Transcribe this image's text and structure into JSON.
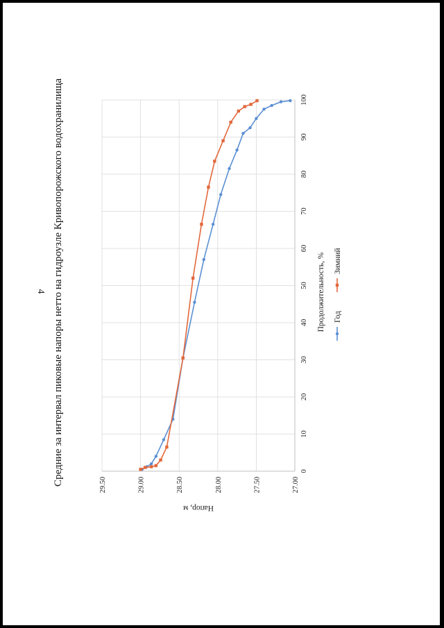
{
  "page": {
    "number": "4"
  },
  "colors": {
    "god": "#5b8fd3",
    "zimniy": "#e2683c",
    "grid": "#d9d9d9",
    "axis": "#bfbfbf"
  },
  "chart_data": {
    "type": "line",
    "title": "Средние за интервал пиковые напоры нетто на гидроузле Кривопорожского водохранилища",
    "xlabel": "Продолжительность, %",
    "ylabel": "Напор, м",
    "xlim": [
      0,
      100
    ],
    "ylim": [
      27.0,
      29.5
    ],
    "x_ticks": [
      "0",
      "10",
      "20",
      "30",
      "40",
      "50",
      "60",
      "70",
      "80",
      "90",
      "100"
    ],
    "y_ticks": [
      "29.50",
      "29.00",
      "28.50",
      "28.00",
      "27.50",
      "27.00"
    ],
    "grid": true,
    "legend_position": "bottom",
    "series": [
      {
        "name": "Год",
        "color": "#5b8fd3",
        "points": [
          [
            0.5,
            28.98
          ],
          [
            1.2,
            28.92
          ],
          [
            2.0,
            28.86
          ],
          [
            4.0,
            28.8
          ],
          [
            8.5,
            28.7
          ],
          [
            14.0,
            28.58
          ],
          [
            30.5,
            28.45
          ],
          [
            45.5,
            28.3
          ],
          [
            57.0,
            28.18
          ],
          [
            66.5,
            28.06
          ],
          [
            74.5,
            27.96
          ],
          [
            81.5,
            27.85
          ],
          [
            86.5,
            27.75
          ],
          [
            91.0,
            27.67
          ],
          [
            92.5,
            27.58
          ],
          [
            95.0,
            27.5
          ],
          [
            97.5,
            27.4
          ],
          [
            98.5,
            27.3
          ],
          [
            99.5,
            27.18
          ],
          [
            99.8,
            27.06
          ]
        ]
      },
      {
        "name": "Зимний",
        "color": "#e2683c",
        "points": [
          [
            0.5,
            29.0
          ],
          [
            1.0,
            28.94
          ],
          [
            1.2,
            28.86
          ],
          [
            1.5,
            28.8
          ],
          [
            3.0,
            28.74
          ],
          [
            6.5,
            28.66
          ],
          [
            30.5,
            28.45
          ],
          [
            52.0,
            28.32
          ],
          [
            66.5,
            28.21
          ],
          [
            76.5,
            28.12
          ],
          [
            83.5,
            28.04
          ],
          [
            89.0,
            27.93
          ],
          [
            94.0,
            27.83
          ],
          [
            97.0,
            27.73
          ],
          [
            98.2,
            27.65
          ],
          [
            98.8,
            27.57
          ],
          [
            99.8,
            27.49
          ]
        ]
      }
    ]
  }
}
